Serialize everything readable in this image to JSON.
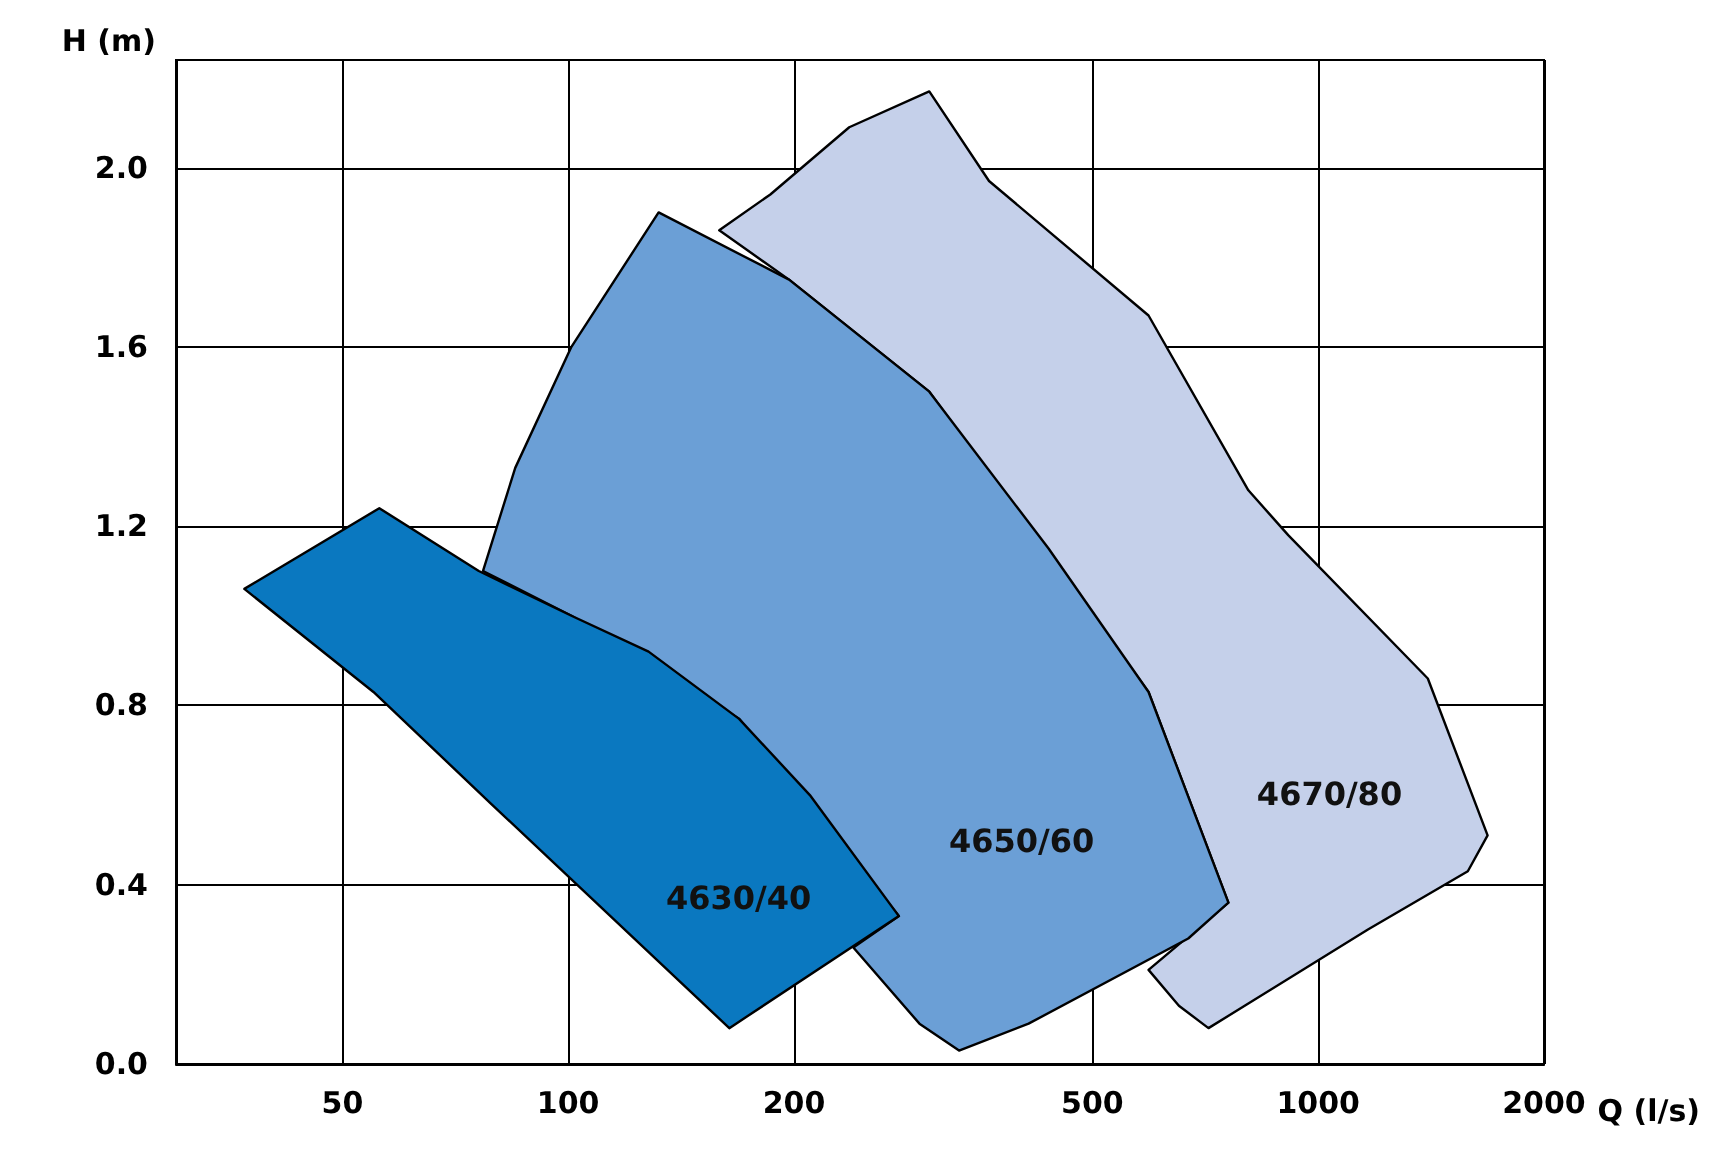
{
  "chart_data": {
    "type": "area",
    "xlabel": "Q (l/s)",
    "ylabel": "H (m)",
    "log": "x",
    "grid": true,
    "legend": false,
    "xlim": [
      30,
      2000
    ],
    "xticks": [
      50,
      100,
      200,
      500,
      1000,
      2000
    ],
    "ylim": [
      0,
      2.24
    ],
    "yticks": [
      {
        "value": 0,
        "label": "0.0"
      },
      {
        "value": 0.4,
        "label": "0.4"
      },
      {
        "value": 0.8,
        "label": "0.8"
      },
      {
        "value": 1.2,
        "label": "1.2"
      },
      {
        "value": 1.6,
        "label": "1.6"
      },
      {
        "value": 2,
        "label": "2.0"
      }
    ],
    "series": [
      {
        "name": "4670/80",
        "color": "#c5d0ea",
        "x": [
          159,
          186,
          237,
          303,
          364,
          594,
          807,
          912,
          1400,
          1682,
          1583,
          1165,
          714,
          652,
          594,
          759,
          594,
          303,
          197
        ],
        "values": [
          1.86,
          1.94,
          2.09,
          2.17,
          1.97,
          1.67,
          1.28,
          1.18,
          0.86,
          0.51,
          0.43,
          0.3,
          0.08,
          0.13,
          0.21,
          0.36,
          0.83,
          1.5,
          1.75
        ]
      },
      {
        "name": "4650/60",
        "color": "#6b9fd6",
        "x": [
          77,
          85,
          101,
          132,
          197,
          303,
          437,
          594,
          759,
          671,
          411,
          332,
          294,
          240,
          276,
          169,
          101
        ],
        "values": [
          1.1,
          1.33,
          1.6,
          1.9,
          1.75,
          1.5,
          1.15,
          0.83,
          0.36,
          0.28,
          0.09,
          0.03,
          0.09,
          0.26,
          0.33,
          0.77,
          1.0
        ]
      },
      {
        "name": "4630/40",
        "color": "#0a78c0",
        "x": [
          37,
          56,
          76,
          101,
          128,
          169,
          210,
          276,
          164,
          79,
          55
        ],
        "values": [
          1.06,
          1.24,
          1.1,
          1.0,
          0.92,
          0.77,
          0.6,
          0.33,
          0.08,
          0.58,
          0.83
        ]
      }
    ]
  }
}
